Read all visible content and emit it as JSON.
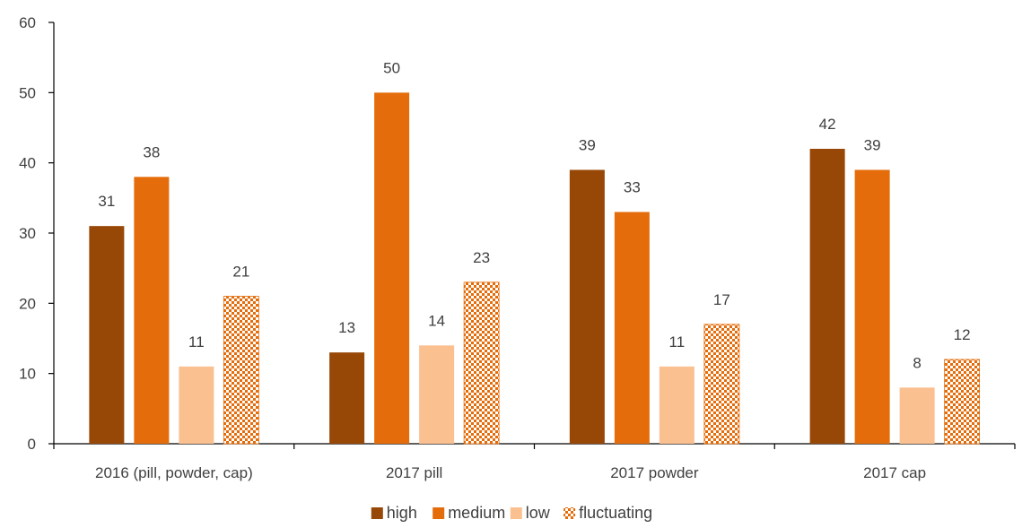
{
  "chart_data": {
    "type": "bar",
    "categories": [
      "2016 (pill, powder, cap)",
      "2017 pill",
      "2017 powder",
      "2017 cap"
    ],
    "series": [
      {
        "name": "high",
        "values": [
          31,
          13,
          39,
          42
        ],
        "color": "#974706"
      },
      {
        "name": "medium",
        "values": [
          38,
          50,
          33,
          39
        ],
        "color": "#E46C0A"
      },
      {
        "name": "low",
        "values": [
          11,
          14,
          11,
          8
        ],
        "color": "#FAC090"
      },
      {
        "name": "fluctuating",
        "values": [
          21,
          23,
          17,
          12
        ],
        "color": "#E46C0A",
        "pattern": "checker"
      }
    ],
    "ylim": [
      0,
      60
    ],
    "yticks": [
      0,
      10,
      20,
      30,
      40,
      50,
      60
    ],
    "grid": false,
    "legend_position": "bottom-center",
    "title": "",
    "xlabel": "",
    "ylabel": ""
  }
}
